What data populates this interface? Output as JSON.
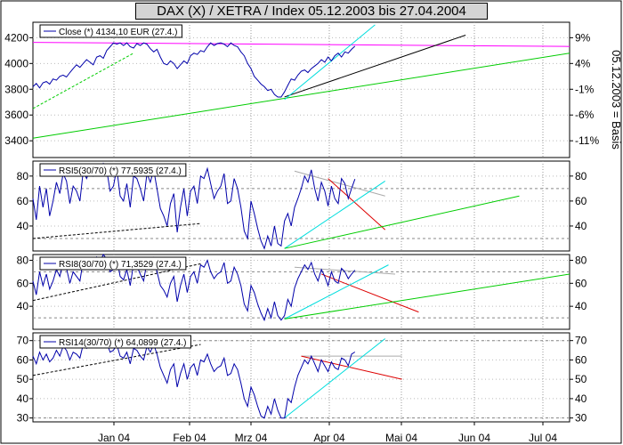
{
  "chart_title": "DAX (X) / XETRA / Index 05.12.2003 bis 27.04.2004",
  "right_axis_label": "05.12.2003 = Basis",
  "x_tick_labels": [
    "Jan 04",
    "Feb 04",
    "Mrz 04",
    "Apr 04",
    "Mai 04",
    "Jun 04",
    "Jul 04"
  ],
  "chart_data": [
    {
      "type": "line",
      "legend": "Close (*) 4134,10 EUR (27.4.)",
      "y_ticks": [
        4200,
        4000,
        3800,
        3600,
        3400
      ],
      "y_tick_labels": [
        "4200",
        "4000",
        "3800",
        "3600",
        "3400"
      ],
      "right_ticks": [
        "9%",
        "4%",
        "-1%",
        "-6%",
        "-11%"
      ],
      "ylim": [
        3270,
        4320
      ],
      "series": [
        {
          "color": "#0000aa",
          "values": [
            3820,
            3845,
            3810,
            3850,
            3860,
            3840,
            3880,
            3870,
            3900,
            3910,
            3895,
            3930,
            3960,
            3990,
            3970,
            4000,
            4030,
            4010,
            3990,
            4050,
            4060,
            4040,
            4100,
            4130,
            4160,
            4150,
            4160,
            4140,
            4160,
            4130,
            4120,
            4155,
            4140,
            4160,
            4150,
            4115,
            4090,
            4110,
            4050,
            4000,
            3990,
            4020,
            4000,
            3960,
            3990,
            4020,
            4000,
            4060,
            4080,
            4070,
            4100,
            4090,
            4130,
            4160,
            4140,
            4155,
            4160,
            4150,
            4130,
            4160,
            4140,
            4130,
            4090,
            4060,
            4000,
            3960,
            3900,
            3870,
            3840,
            3820,
            3790,
            3800,
            3760,
            3740,
            3740,
            3780,
            3830,
            3880,
            3870,
            3910,
            3940,
            3950,
            3930,
            3960,
            3980,
            4000,
            4030,
            4010,
            4050,
            4020,
            4060,
            4080,
            4050,
            4090,
            4080,
            4110,
            4134
          ]
        }
      ],
      "trend_lines": [
        {
          "color": "#ff00ff",
          "dash": false,
          "points": [
            [
              0,
              4164
            ],
            [
              160,
              4132
            ]
          ]
        },
        {
          "color": "#00cc00",
          "dash": true,
          "points": [
            [
              0,
              3650
            ],
            [
              30,
              4080
            ]
          ]
        },
        {
          "color": "#00cc00",
          "dash": false,
          "points": [
            [
              0,
              3420
            ],
            [
              160,
              4080
            ]
          ]
        },
        {
          "color": "#000000",
          "dash": false,
          "points": [
            [
              75,
              3740
            ],
            [
              129,
              4220
            ]
          ]
        },
        {
          "color": "#00dddd",
          "dash": false,
          "points": [
            [
              75,
              3720
            ],
            [
              102,
              4300
            ]
          ]
        }
      ]
    },
    {
      "type": "line",
      "legend": "RSI5(30/70) (*) 77,5935 (27.4.)",
      "y_ticks": [
        80,
        60,
        40
      ],
      "y_tick_labels": [
        "80",
        "60",
        "40"
      ],
      "right_ticks": [
        "80",
        "60",
        "40"
      ],
      "ylim": [
        20,
        92
      ],
      "hlines": [
        70,
        30
      ],
      "series": [
        {
          "color": "#0000aa",
          "values": [
            62,
            45,
            72,
            55,
            70,
            48,
            60,
            75,
            66,
            82,
            76,
            58,
            72,
            68,
            60,
            84,
            78,
            85,
            80,
            88,
            82,
            90,
            85,
            68,
            72,
            86,
            64,
            60,
            74,
            55,
            80,
            78,
            70,
            60,
            82,
            75,
            85,
            70,
            54,
            48,
            40,
            58,
            66,
            35,
            55,
            70,
            48,
            68,
            72,
            58,
            80,
            78,
            86,
            74,
            62,
            68,
            72,
            82,
            58,
            60,
            78,
            70,
            55,
            36,
            30,
            60,
            50,
            38,
            28,
            22,
            32,
            24,
            40,
            26,
            24,
            44,
            50,
            40,
            55,
            62,
            70,
            80,
            75,
            85,
            70,
            60,
            75,
            68,
            56,
            72,
            62,
            58,
            78,
            74,
            62,
            70,
            77.6
          ]
        }
      ],
      "trend_lines": [
        {
          "color": "#000000",
          "dash": true,
          "points": [
            [
              0,
              30
            ],
            [
              50,
              42
            ]
          ]
        },
        {
          "color": "#aaaaaa",
          "dash": false,
          "points": [
            [
              78,
              84
            ],
            [
              105,
              64
            ]
          ]
        },
        {
          "color": "#dd0000",
          "dash": false,
          "points": [
            [
              88,
              78
            ],
            [
              105,
              37
            ]
          ]
        },
        {
          "color": "#00dddd",
          "dash": false,
          "points": [
            [
              75,
              22
            ],
            [
              105,
              76
            ]
          ]
        },
        {
          "color": "#00cc00",
          "dash": false,
          "points": [
            [
              75,
              22
            ],
            [
              145,
              64
            ]
          ]
        }
      ]
    },
    {
      "type": "line",
      "legend": "RSI8(30/70) (*) 71,3529 (27.4.)",
      "y_ticks": [
        80,
        60,
        40
      ],
      "y_tick_labels": [
        "80",
        "60",
        "40"
      ],
      "right_ticks": [
        "80",
        "60",
        "40"
      ],
      "ylim": [
        20,
        85
      ],
      "hlines": [
        70,
        30
      ],
      "series": [
        {
          "color": "#0000aa",
          "values": [
            62,
            50,
            70,
            58,
            68,
            55,
            62,
            72,
            66,
            78,
            73,
            60,
            70,
            66,
            62,
            80,
            75,
            82,
            78,
            83,
            79,
            85,
            81,
            70,
            72,
            82,
            66,
            63,
            72,
            58,
            77,
            75,
            68,
            62,
            79,
            73,
            82,
            70,
            58,
            54,
            48,
            60,
            66,
            44,
            58,
            68,
            52,
            66,
            70,
            60,
            76,
            74,
            80,
            70,
            64,
            68,
            70,
            78,
            60,
            62,
            74,
            68,
            58,
            42,
            36,
            58,
            52,
            42,
            34,
            28,
            38,
            30,
            44,
            32,
            28,
            32,
            46,
            40,
            56,
            64,
            70,
            76,
            72,
            78,
            68,
            62,
            72,
            66,
            58,
            70,
            62,
            60,
            73,
            70,
            64,
            68,
            71.4
          ]
        }
      ],
      "trend_lines": [
        {
          "color": "#000000",
          "dash": true,
          "points": [
            [
              0,
              45
            ],
            [
              50,
              77
            ]
          ]
        },
        {
          "color": "#aaaaaa",
          "dash": false,
          "points": [
            [
              78,
              74
            ],
            [
              108,
              68
            ]
          ]
        },
        {
          "color": "#dd0000",
          "dash": false,
          "points": [
            [
              86,
              68
            ],
            [
              115,
              35
            ]
          ]
        },
        {
          "color": "#00dddd",
          "dash": false,
          "points": [
            [
              75,
              29
            ],
            [
              106,
              76
            ]
          ]
        },
        {
          "color": "#00cc00",
          "dash": false,
          "points": [
            [
              75,
              29
            ],
            [
              160,
              68
            ]
          ]
        }
      ]
    },
    {
      "type": "line",
      "legend": "RSI14(30/70) (*) 64,0899 (27.4.)",
      "y_ticks": [
        70,
        60,
        50,
        40,
        30
      ],
      "y_tick_labels": [
        "70",
        "60",
        "50",
        "40",
        "30"
      ],
      "right_ticks": [
        "70",
        "60",
        "50",
        "40",
        "30"
      ],
      "ylim": [
        28,
        74
      ],
      "hlines": [
        70,
        30
      ],
      "series": [
        {
          "color": "#0000aa",
          "values": [
            62,
            58,
            64,
            60,
            63,
            59,
            61,
            65,
            62,
            67,
            65,
            60,
            64,
            63,
            61,
            68,
            66,
            69,
            67,
            70,
            68,
            71,
            69,
            64,
            65,
            68,
            62,
            61,
            64,
            58,
            66,
            65,
            62,
            60,
            67,
            64,
            68,
            63,
            56,
            52,
            48,
            55,
            58,
            46,
            53,
            58,
            50,
            56,
            58,
            52,
            60,
            59,
            63,
            58,
            54,
            56,
            57,
            61,
            52,
            53,
            58,
            55,
            48,
            40,
            36,
            46,
            42,
            36,
            31,
            30,
            36,
            32,
            40,
            34,
            30,
            30,
            40,
            38,
            46,
            52,
            56,
            60,
            58,
            62,
            58,
            54,
            60,
            57,
            54,
            59,
            56,
            55,
            61,
            60,
            57,
            63,
            64.1
          ]
        }
      ],
      "trend_lines": [
        {
          "color": "#000000",
          "dash": true,
          "points": [
            [
              0,
              52
            ],
            [
              50,
              68
            ]
          ]
        },
        {
          "color": "#aaaaaa",
          "dash": false,
          "points": [
            [
              80,
              62
            ],
            [
              110,
              62
            ]
          ]
        },
        {
          "color": "#dd0000",
          "dash": false,
          "points": [
            [
              80,
              62
            ],
            [
              110,
              50
            ]
          ]
        },
        {
          "color": "#00dddd",
          "dash": false,
          "points": [
            [
              75,
              30
            ],
            [
              105,
              71
            ]
          ]
        }
      ]
    }
  ]
}
